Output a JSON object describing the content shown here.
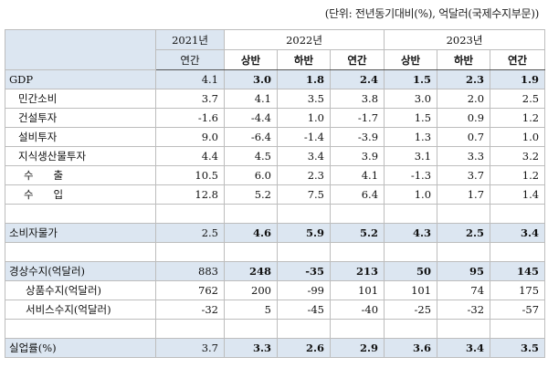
{
  "unit_note": "(단위: 전년동기대비(%), 억달러(국제수지부문))",
  "header": {
    "year_2021": "2021년",
    "year_2022": "2022년",
    "year_2023": "2023년",
    "sub_2021": "연간",
    "sub_2022": [
      "상반",
      "하반",
      "연간"
    ],
    "sub_2023": [
      "상반",
      "하반",
      "연간"
    ]
  },
  "rows": [
    {
      "label": "GDP",
      "v2021": "4.1",
      "h1_2022": "3.0",
      "h2_2022": "1.8",
      "y2022": "2.4",
      "h1_2023": "1.5",
      "h2_2023": "2.3",
      "y2023": "1.9"
    },
    {
      "label": "민간소비",
      "v2021": "3.7",
      "h1_2022": "4.1",
      "h2_2022": "3.5",
      "y2022": "3.8",
      "h1_2023": "3.0",
      "h2_2023": "2.0",
      "y2023": "2.5"
    },
    {
      "label": "건설투자",
      "v2021": "-1.6",
      "h1_2022": "-4.4",
      "h2_2022": "1.0",
      "y2022": "-1.7",
      "h1_2023": "1.5",
      "h2_2023": "0.9",
      "y2023": "1.2"
    },
    {
      "label": "설비투자",
      "v2021": "9.0",
      "h1_2022": "-6.4",
      "h2_2022": "-1.4",
      "y2022": "-3.9",
      "h1_2023": "1.3",
      "h2_2023": "0.7",
      "y2023": "1.0"
    },
    {
      "label": "지식생산물투자",
      "v2021": "4.4",
      "h1_2022": "4.5",
      "h2_2022": "3.4",
      "y2022": "3.9",
      "h1_2023": "3.1",
      "h2_2023": "3.3",
      "y2023": "3.2"
    },
    {
      "label": "수      출",
      "v2021": "10.5",
      "h1_2022": "6.0",
      "h2_2022": "2.3",
      "y2022": "4.1",
      "h1_2023": "-1.3",
      "h2_2023": "3.7",
      "y2023": "1.2"
    },
    {
      "label": "수      입",
      "v2021": "12.8",
      "h1_2022": "5.2",
      "h2_2022": "7.5",
      "y2022": "6.4",
      "h1_2023": "1.0",
      "h2_2023": "1.7",
      "y2023": "1.4"
    },
    {
      "label": "소비자물가",
      "v2021": "2.5",
      "h1_2022": "4.6",
      "h2_2022": "5.9",
      "y2022": "5.2",
      "h1_2023": "4.3",
      "h2_2023": "2.5",
      "y2023": "3.4"
    },
    {
      "label": "경상수지(억달러)",
      "v2021": "883",
      "h1_2022": "248",
      "h2_2022": "-35",
      "y2022": "213",
      "h1_2023": "50",
      "h2_2023": "95",
      "y2023": "145"
    },
    {
      "label": "상품수지(억달러)",
      "v2021": "762",
      "h1_2022": "200",
      "h2_2022": "-99",
      "y2022": "101",
      "h1_2023": "101",
      "h2_2023": "74",
      "y2023": "175"
    },
    {
      "label": "서비스수지(억달러)",
      "v2021": "-32",
      "h1_2022": "5",
      "h2_2022": "-45",
      "y2022": "-40",
      "h1_2023": "-25",
      "h2_2023": "-32",
      "y2023": "-57"
    },
    {
      "label": "실업률(%)",
      "v2021": "3.7",
      "h1_2022": "3.3",
      "h2_2022": "2.6",
      "y2022": "2.9",
      "h1_2023": "3.6",
      "h2_2023": "3.4",
      "y2023": "3.5"
    }
  ]
}
